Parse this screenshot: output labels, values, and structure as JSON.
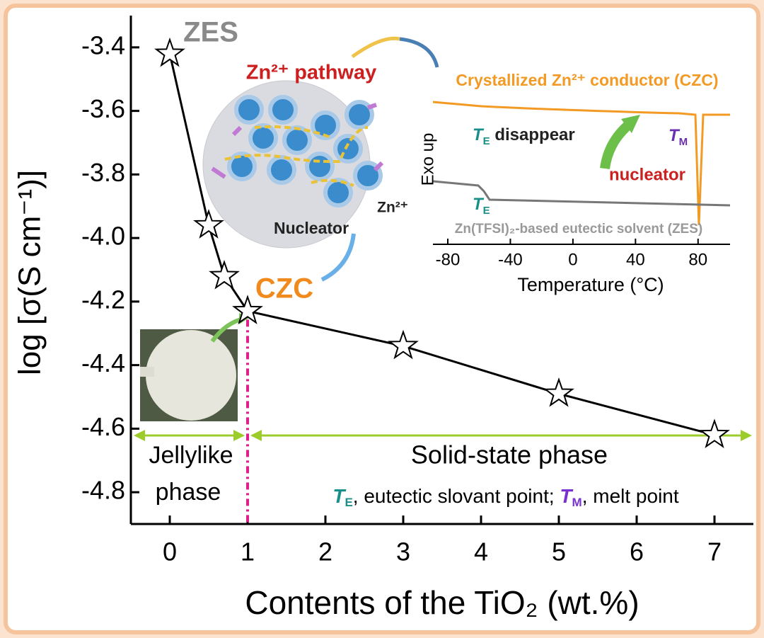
{
  "chart_data": {
    "type": "line",
    "x_label": "Contents of the TiO₂ (wt.%)",
    "y_label": "log [σ(S cm⁻¹)]",
    "x": [
      0,
      0.5,
      0.7,
      1,
      3,
      5,
      7
    ],
    "series": [
      {
        "color": "#000000",
        "values": [
          -3.42,
          -3.96,
          -4.12,
          -4.23,
          -4.34,
          -4.49,
          -4.62
        ]
      }
    ],
    "xlim": [
      -0.5,
      7.5
    ],
    "xticks": [
      0,
      1,
      2,
      3,
      4,
      5,
      6,
      7
    ],
    "ylim": [
      -4.9,
      -3.3
    ],
    "yticks": [
      -4.8,
      -4.6,
      -4.4,
      -4.2,
      {
        "value": -4,
        "label": "-4.0"
      },
      -3.8,
      -3.6,
      -3.4
    ],
    "boundary_x": 1,
    "annotations": {
      "zes": "ZES",
      "czc": "CZC",
      "jelly_line1": "Jellylike",
      "jelly_line2": "phase",
      "solid": "Solid-state phase",
      "note": {
        "te_symbol": "T",
        "te_sub": "E",
        "te_text": ", eutectic slovant point; ",
        "tm_symbol": "T",
        "tm_sub": "M",
        "tm_text": ", melt point"
      },
      "pathway": "Zn²⁺ pathway",
      "nucleator": "Nucleator",
      "zn_ion": "Zn²⁺"
    },
    "inset": {
      "x_label": "Temperature (°C)",
      "y_label": "Exo up",
      "xlim": [
        -80,
        100
      ],
      "xticks": [
        -80,
        -40,
        0,
        40,
        80
      ],
      "czc_label": "Crystallized Zn²⁺ conductor (CZC)",
      "zes_label": "Zn(TFSI)₂-based eutectic solvent (ZES)",
      "te_disappear": {
        "symbol": "T",
        "sub": "E",
        "text": " disappear"
      },
      "tm": {
        "symbol": "T",
        "sub": "M"
      },
      "te": {
        "symbol": "T",
        "sub": "E"
      },
      "nucleator": "nucleator"
    }
  }
}
